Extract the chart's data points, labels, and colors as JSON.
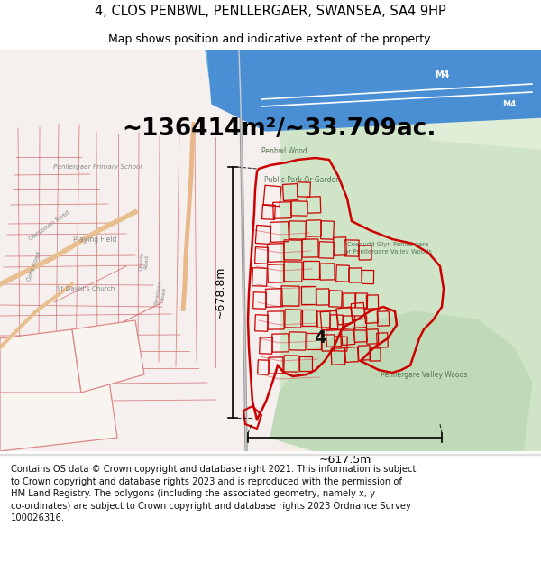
{
  "title_line1": "4, CLOS PENBWL, PENLLERGAER, SWANSEA, SA4 9HP",
  "title_line2": "Map shows position and indicative extent of the property.",
  "area_text": "~136414m²/~33.709ac.",
  "height_label": "~678.8m",
  "width_label": "~617.5m",
  "property_number": "4",
  "footer_text": "Contains OS data © Crown copyright and database right 2021. This information is subject to Crown copyright and database rights 2023 and is reproduced with the permission of HM Land Registry. The polygons (including the associated geometry, namely x, y co-ordinates) are subject to Crown copyright and database rights 2023 Ordnance Survey 100026316.",
  "fig_width": 6.0,
  "fig_height": 6.25,
  "dpi": 100,
  "title_fontsize": 10.5,
  "subtitle_fontsize": 9.0,
  "area_fontsize": 19,
  "measure_fontsize": 9,
  "footer_fontsize": 7.2,
  "red_color": "#cc0000",
  "map_label_color": "#888888",
  "green_label_color": "#557755"
}
